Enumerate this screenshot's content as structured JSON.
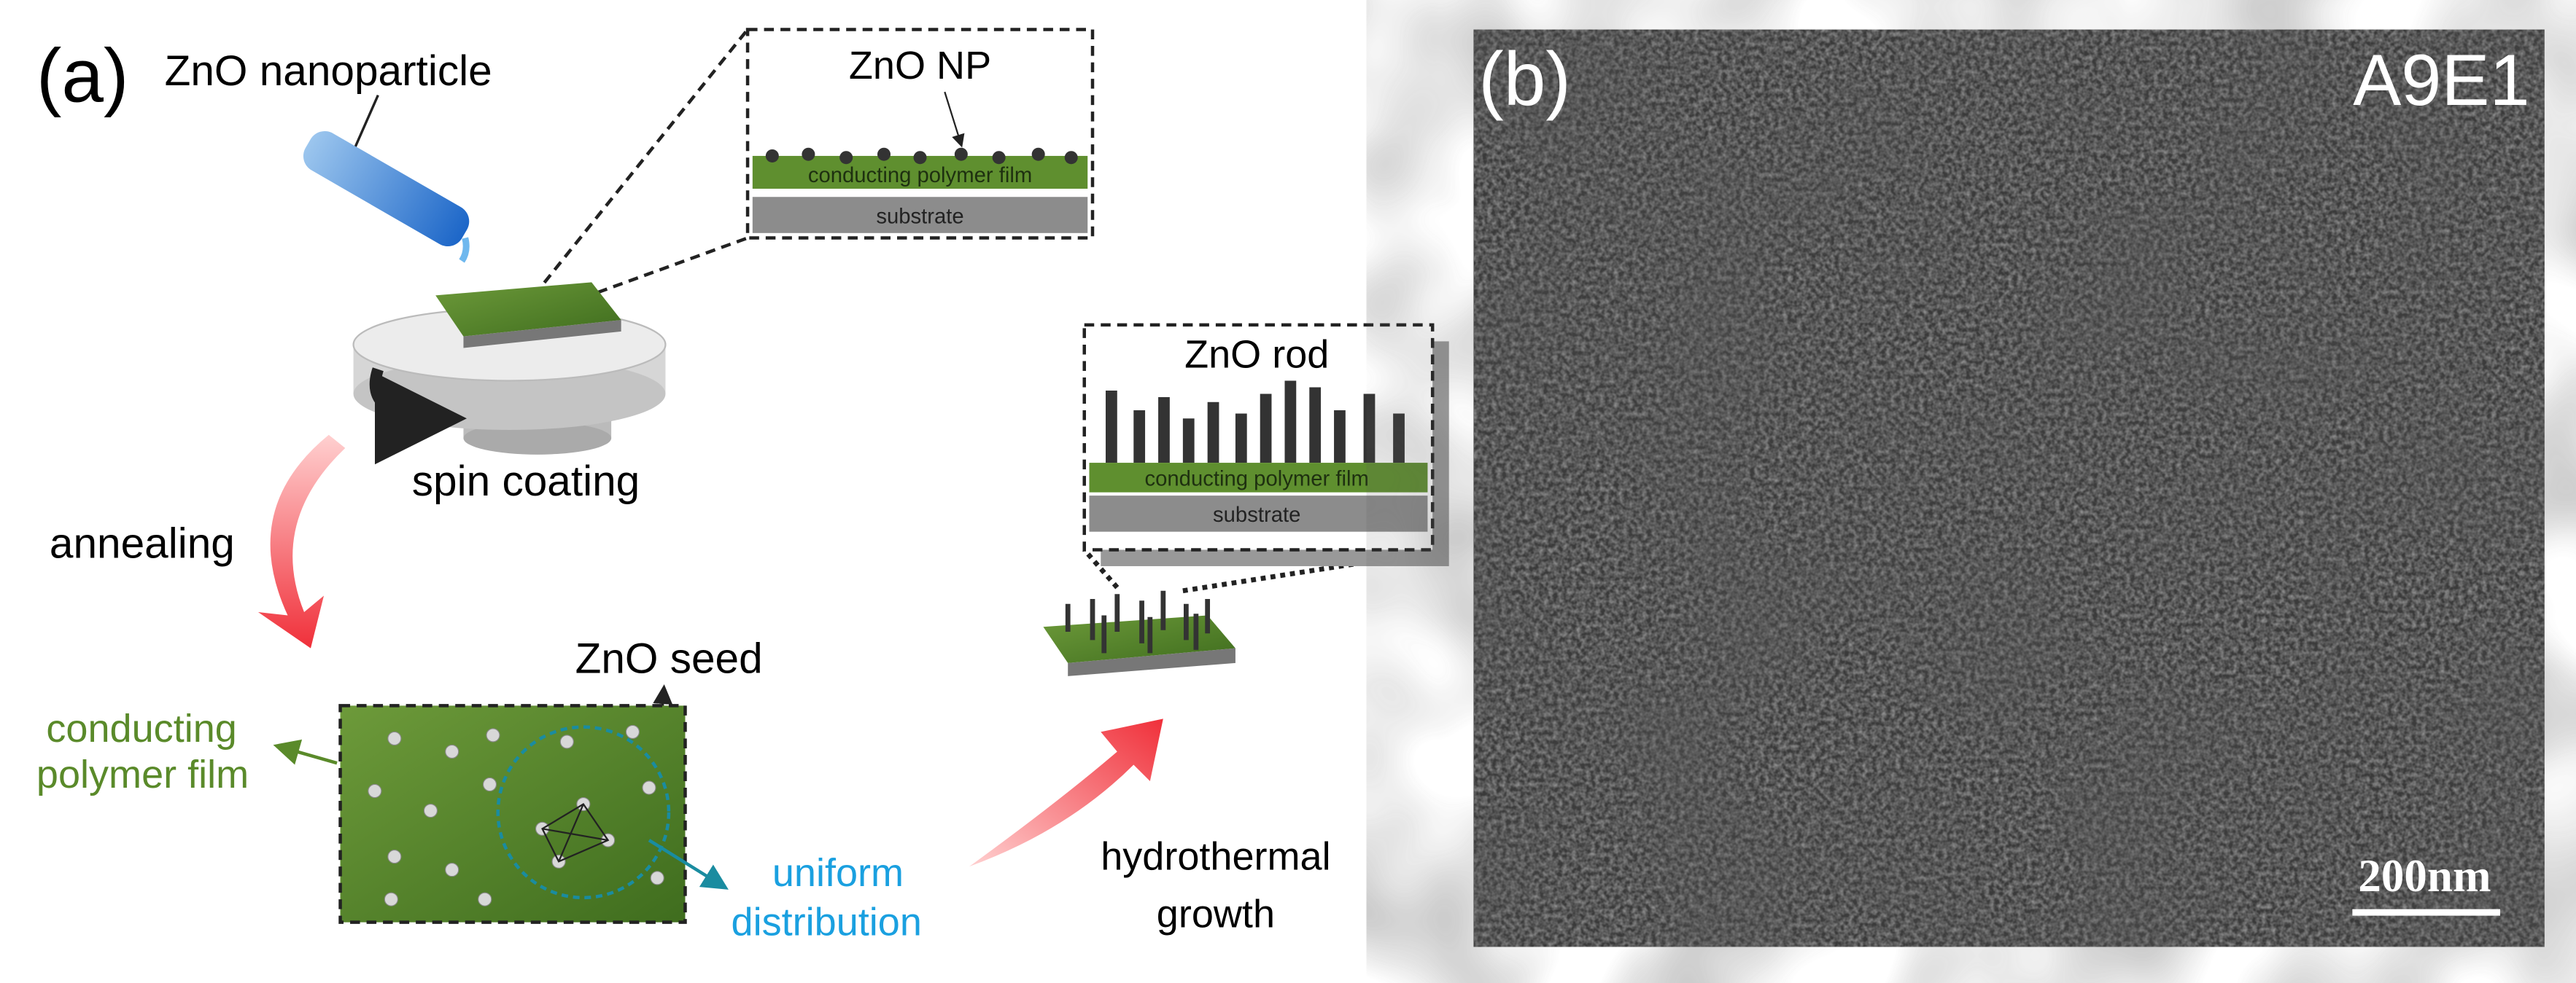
{
  "panel_a": {
    "label": "(a)",
    "pipette_label": "ZnO nanoparticle",
    "inset_np": {
      "title": "ZnO NP",
      "film": "conducting polymer film",
      "substrate": "substrate"
    },
    "spin_label": "spin coating",
    "annealing_label": "annealing",
    "seed_label": "ZnO seed",
    "film_label": [
      "conducting",
      "polymer film"
    ],
    "distribution_label": [
      "uniform",
      "distribution"
    ],
    "growth_label": [
      "hydrothermal",
      "growth"
    ],
    "inset_rod": {
      "title": "ZnO rod",
      "film": "conducting polymer film",
      "substrate": "substrate"
    }
  },
  "panel_b": {
    "label": "(b)",
    "sample": "A9E1",
    "scale_bar": "200nm"
  }
}
